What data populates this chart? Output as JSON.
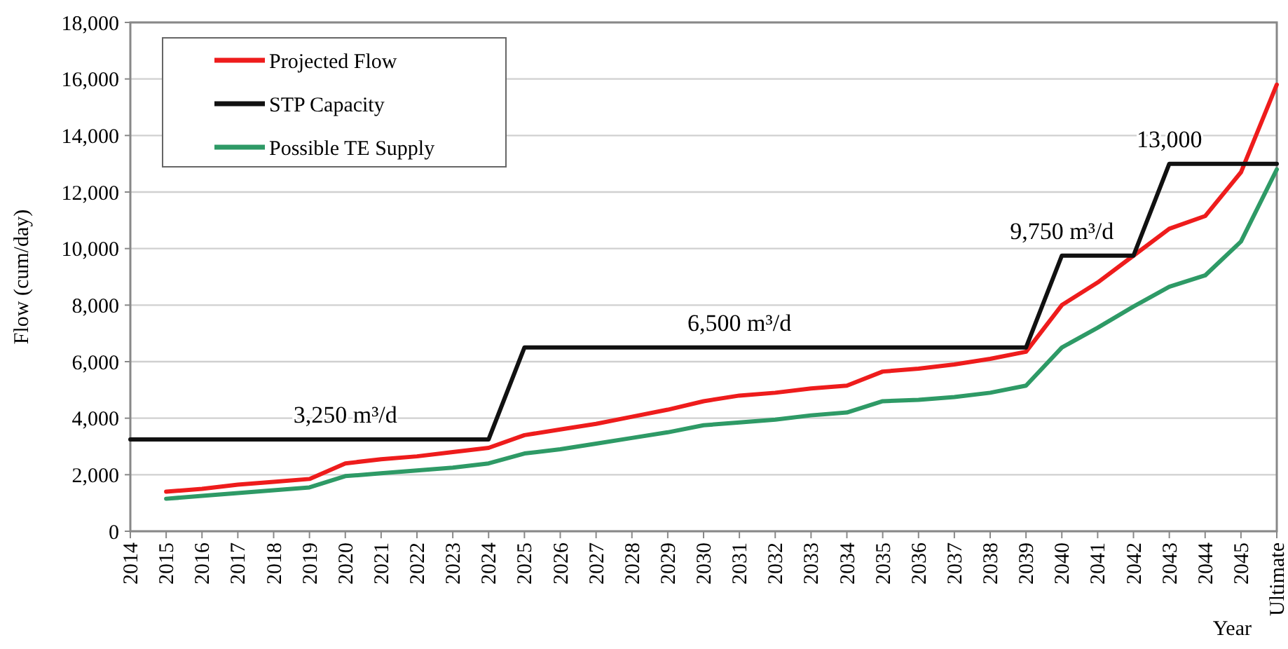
{
  "chart_data": {
    "type": "line",
    "xlabel": "Year",
    "ylabel": "Flow (cum/day)",
    "categories": [
      "2014",
      "2015",
      "2016",
      "2017",
      "2018",
      "2019",
      "2020",
      "2021",
      "2022",
      "2023",
      "2024",
      "2025",
      "2026",
      "2027",
      "2028",
      "2029",
      "2030",
      "2031",
      "2032",
      "2033",
      "2034",
      "2035",
      "2036",
      "2037",
      "2038",
      "2039",
      "2040",
      "2041",
      "2042",
      "2043",
      "2044",
      "2045",
      "Ultimate"
    ],
    "series": [
      {
        "name": "Projected Flow",
        "color": "#ee1c1c",
        "values": [
          null,
          1400,
          1500,
          1650,
          1750,
          1850,
          2400,
          2550,
          2650,
          2800,
          2950,
          3400,
          3600,
          3800,
          4050,
          4300,
          4600,
          4800,
          4900,
          5050,
          5150,
          5650,
          5750,
          5900,
          6100,
          6350,
          8000,
          8800,
          9750,
          10700,
          11150,
          12700,
          15800
        ]
      },
      {
        "name": "STP Capacity",
        "color": "#111111",
        "values": [
          3250,
          3250,
          3250,
          3250,
          3250,
          3250,
          3250,
          3250,
          3250,
          3250,
          3250,
          6500,
          6500,
          6500,
          6500,
          6500,
          6500,
          6500,
          6500,
          6500,
          6500,
          6500,
          6500,
          6500,
          6500,
          6500,
          9750,
          9750,
          9750,
          13000,
          13000,
          13000,
          13000
        ]
      },
      {
        "name": "Possible TE Supply",
        "color": "#2e9a66",
        "values": [
          null,
          1150,
          1250,
          1350,
          1450,
          1550,
          1950,
          2050,
          2150,
          2250,
          2400,
          2750,
          2900,
          3100,
          3300,
          3500,
          3750,
          3850,
          3950,
          4100,
          4200,
          4600,
          4650,
          4750,
          4900,
          5150,
          6500,
          7200,
          7950,
          8650,
          9050,
          10250,
          12800
        ]
      }
    ],
    "ylim": [
      0,
      18000
    ],
    "yticks": [
      0,
      {
        "value": 2000,
        "label": "2,000"
      },
      {
        "value": 4000,
        "label": "4,000"
      },
      {
        "value": 6000,
        "label": "6,000"
      },
      {
        "value": 8000,
        "label": "8,000"
      },
      {
        "value": 10000,
        "label": "10,000"
      },
      {
        "value": 12000,
        "label": "12,000"
      },
      {
        "value": 14000,
        "label": "14,000"
      },
      {
        "value": 16000,
        "label": "16,000"
      },
      {
        "value": 18000,
        "label": "18,000"
      }
    ],
    "grid": "y",
    "legend": "top left",
    "marker": "none",
    "line_style": "solid",
    "annotations": [
      {
        "text": "3,250 m³/d",
        "x": "2020",
        "y": 3250
      },
      {
        "text": "6,500 m³/d",
        "x": "2031",
        "y": 6500
      },
      {
        "text": "9,750 m³/d",
        "x": "2040",
        "y": 9750
      },
      {
        "text": "13,000",
        "x": "2043",
        "y": 13000
      }
    ]
  }
}
